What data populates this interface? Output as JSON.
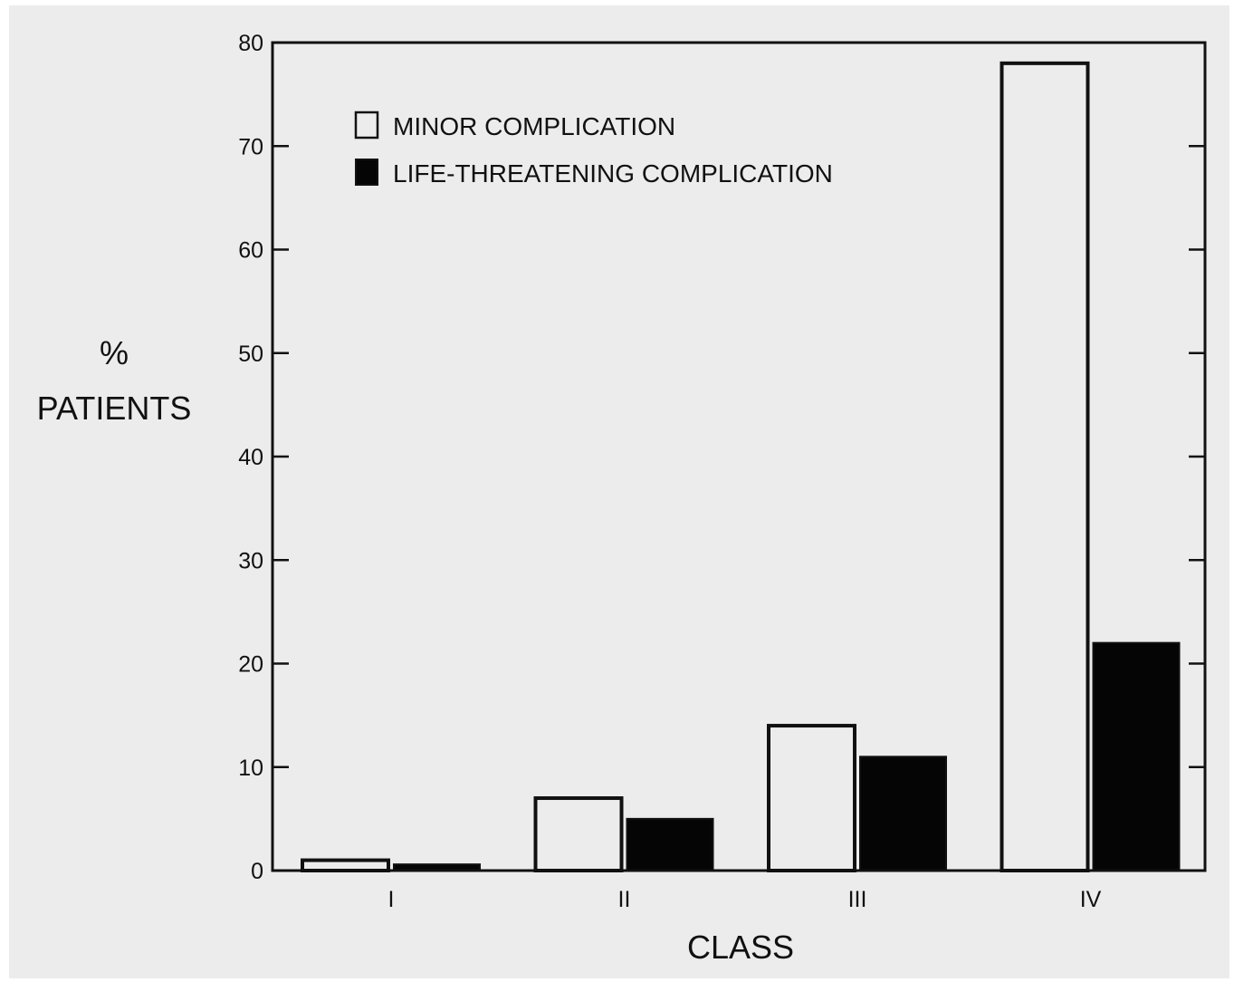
{
  "chart_data": {
    "type": "bar",
    "xlabel": "CLASS",
    "ylabel_symbol": "%",
    "ylabel": "PATIENTS",
    "categories": [
      "I",
      "II",
      "III",
      "IV"
    ],
    "series": [
      {
        "name": "MINOR COMPLICATION",
        "fill": "#ececec",
        "values": [
          1,
          7,
          14,
          78
        ]
      },
      {
        "name": "LIFE-THREATENING COMPLICATION",
        "fill": "#050505",
        "values": [
          0.6,
          5,
          11,
          22
        ]
      }
    ],
    "ylim": [
      0,
      80
    ],
    "yticks": [
      "0",
      "10",
      "20",
      "30",
      "40",
      "50",
      "60",
      "70",
      "80"
    ],
    "grid": false,
    "legend_position": "top-left"
  }
}
